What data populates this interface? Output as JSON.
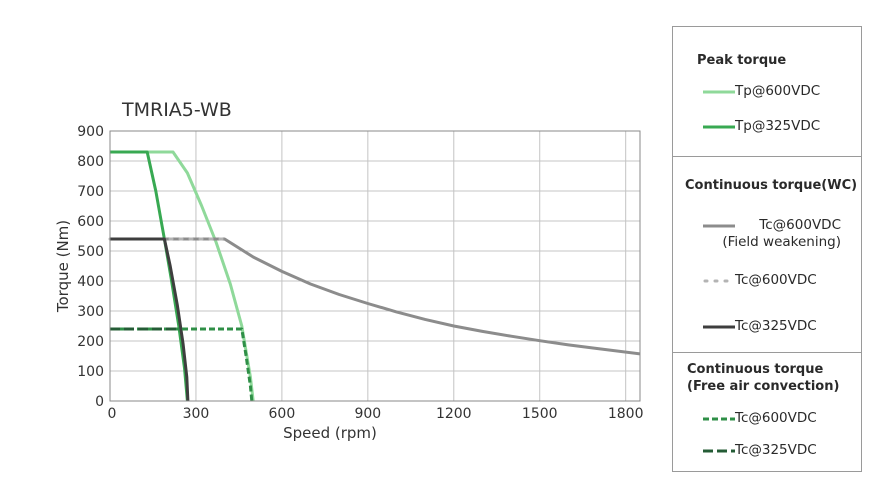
{
  "chart_data": {
    "type": "line",
    "title": "TMRIA5-WB",
    "xlabel": "Speed (rpm)",
    "ylabel": "Torque (Nm)",
    "xlim": [
      0,
      1850
    ],
    "ylim": [
      0,
      900
    ],
    "xticks": [
      0,
      300,
      600,
      900,
      1200,
      1500,
      1800
    ],
    "yticks": [
      0,
      100,
      200,
      300,
      400,
      500,
      600,
      700,
      800,
      900
    ],
    "grid": true,
    "legend_position": "right",
    "series": [
      {
        "name": "Tp@600VDC",
        "group": 0,
        "color": "#8fd99a",
        "dash": "solid",
        "width": 3,
        "points": [
          [
            0,
            830
          ],
          [
            220,
            830
          ],
          [
            270,
            760
          ],
          [
            320,
            650
          ],
          [
            370,
            530
          ],
          [
            420,
            390
          ],
          [
            460,
            250
          ],
          [
            490,
            80
          ],
          [
            500,
            0
          ]
        ]
      },
      {
        "name": "Tp@325VDC",
        "group": 0,
        "color": "#38a952",
        "dash": "solid",
        "width": 3,
        "points": [
          [
            0,
            830
          ],
          [
            130,
            830
          ],
          [
            160,
            700
          ],
          [
            190,
            540
          ],
          [
            215,
            400
          ],
          [
            240,
            250
          ],
          [
            260,
            110
          ],
          [
            270,
            0
          ]
        ]
      },
      {
        "name": "Tc@600VDC (Field weakening)",
        "group": 1,
        "color": "#8c8c8c",
        "dash": "solid",
        "width": 3,
        "points": [
          [
            0,
            540
          ],
          [
            400,
            540
          ],
          [
            450,
            510
          ],
          [
            500,
            480
          ],
          [
            600,
            432
          ],
          [
            700,
            390
          ],
          [
            800,
            355
          ],
          [
            900,
            325
          ],
          [
            1000,
            297
          ],
          [
            1100,
            272
          ],
          [
            1200,
            250
          ],
          [
            1300,
            232
          ],
          [
            1400,
            216
          ],
          [
            1500,
            201
          ],
          [
            1600,
            187
          ],
          [
            1700,
            175
          ],
          [
            1850,
            157
          ]
        ]
      },
      {
        "name": "Tc@600VDC",
        "group": 1,
        "color": "#b4b4b4",
        "dash": "dotted",
        "width": 3,
        "points": [
          [
            0,
            540
          ],
          [
            400,
            540
          ]
        ]
      },
      {
        "name": "Tc@325VDC",
        "group": 1,
        "color": "#3e3e3e",
        "dash": "solid",
        "width": 3,
        "points": [
          [
            0,
            540
          ],
          [
            190,
            540
          ],
          [
            210,
            450
          ],
          [
            235,
            320
          ],
          [
            255,
            190
          ],
          [
            268,
            80
          ],
          [
            272,
            0
          ]
        ]
      },
      {
        "name": "Tc@600VDC",
        "group": 2,
        "color": "#2f8f47",
        "dash": "dashed",
        "width": 3,
        "points": [
          [
            0,
            240
          ],
          [
            460,
            240
          ],
          [
            475,
            150
          ],
          [
            490,
            50
          ],
          [
            495,
            0
          ]
        ]
      },
      {
        "name": "Tc@325VDC",
        "group": 2,
        "color": "#245c36",
        "dash": "longdash",
        "width": 3,
        "points": [
          [
            0,
            240
          ],
          [
            240,
            240
          ]
        ]
      }
    ]
  },
  "legend": {
    "groups": [
      {
        "title": "Peak torque"
      },
      {
        "title": "Continuous torque(WC)"
      },
      {
        "title": "Continuous torque\n(Free air convection)"
      }
    ],
    "items": [
      {
        "label": "Tp@600VDC"
      },
      {
        "label": "Tp@325VDC"
      },
      {
        "label": "Tc@600VDC\n(Field weakening)"
      },
      {
        "label": "Tc@600VDC"
      },
      {
        "label": "Tc@325VDC"
      },
      {
        "label": "Tc@600VDC"
      },
      {
        "label": "Tc@325VDC"
      }
    ]
  }
}
